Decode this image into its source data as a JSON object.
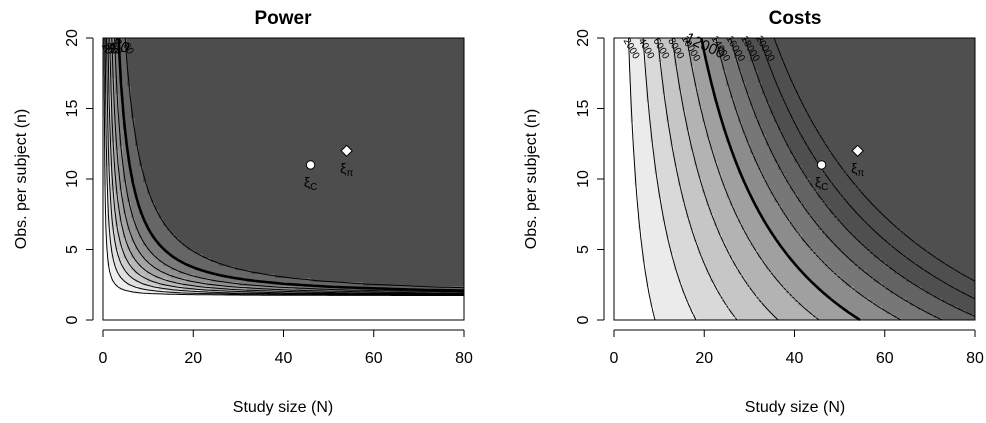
{
  "chart_data": [
    {
      "type": "contour",
      "title": "Power",
      "xlabel": "Study size (N)",
      "ylabel": "Obs. per subject (n)",
      "xlim": [
        0,
        80
      ],
      "ylim": [
        0,
        20
      ],
      "xticks": [
        0,
        20,
        40,
        60,
        80
      ],
      "yticks": [
        0,
        5,
        10,
        15,
        20
      ],
      "grid": false,
      "contour_levels": [
        10,
        20,
        30,
        40,
        50,
        60,
        70,
        80,
        90
      ],
      "contour_labels": [
        "10",
        "30",
        "50",
        "60",
        "70",
        "80",
        "90"
      ],
      "highlight_level": 80,
      "fill_colors": [
        "#ffffff",
        "#eeeeee",
        "#e0e0e0",
        "#cccccc",
        "#b8b8b8",
        "#a4a4a4",
        "#909090",
        "#7a7a7a",
        "#666666",
        "#4d4d4d"
      ],
      "points": [
        {
          "label": "ξC",
          "symbol": "circle",
          "x": 46,
          "y": 11
        },
        {
          "label": "ξπ",
          "symbol": "diamond",
          "x": 54,
          "y": 12
        }
      ]
    },
    {
      "type": "contour",
      "title": "Costs",
      "xlabel": "Study size (N)",
      "ylabel": "Obs. per subject (n)",
      "xlim": [
        0,
        80
      ],
      "ylim": [
        0,
        20
      ],
      "xticks": [
        0,
        20,
        40,
        60,
        80
      ],
      "yticks": [
        0,
        5,
        10,
        15,
        20
      ],
      "grid": false,
      "contour_levels": [
        2000,
        4000,
        6000,
        8000,
        10000,
        12000,
        14000,
        16000,
        18000,
        20000,
        22000
      ],
      "contour_labels": [
        "2000",
        "4000",
        "6000",
        "8000",
        "10000",
        "12000",
        "14000",
        "16000",
        "18000",
        "20000"
      ],
      "highlight_level": 12000,
      "fill_colors": [
        "#ffffff",
        "#ebebeb",
        "#d9d9d9",
        "#c6c6c6",
        "#b3b3b3",
        "#a0a0a0",
        "#8c8c8c",
        "#777777",
        "#636363",
        "#4f4f4f"
      ],
      "points": [
        {
          "label": "ξC",
          "symbol": "circle",
          "x": 46,
          "y": 11
        },
        {
          "label": "ξπ",
          "symbol": "diamond",
          "x": 54,
          "y": 12
        }
      ]
    }
  ]
}
